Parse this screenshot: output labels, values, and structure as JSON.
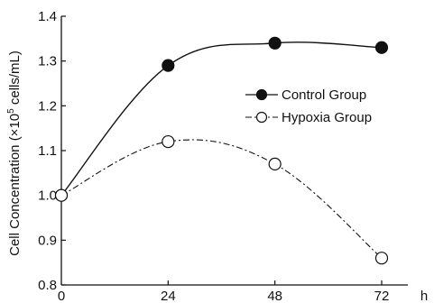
{
  "chart_data": {
    "type": "line",
    "x": [
      0,
      24,
      48,
      72
    ],
    "x_ticks": [
      "0",
      "24",
      "48",
      "72"
    ],
    "x_unit": "h",
    "y_ticks": [
      "0.8",
      "0.9",
      "1.0",
      "1.1",
      "1.2",
      "1.3",
      "1.4"
    ],
    "ylim": [
      0.8,
      1.4
    ],
    "xlim": [
      0,
      72
    ],
    "ylabel_main": "Cell Concentration (×10",
    "ylabel_sup": "5",
    "ylabel_end": " cells/mL)",
    "grid": false,
    "legend_position": "right",
    "series": [
      {
        "name": "Control Group",
        "values": [
          1.0,
          1.29,
          1.34,
          1.33
        ],
        "marker": "filled-circle",
        "line_style": "solid",
        "color": "#111111"
      },
      {
        "name": "Hypoxia Group",
        "values": [
          1.0,
          1.12,
          1.07,
          0.86
        ],
        "marker": "open-circle",
        "line_style": "dash-dot",
        "color": "#111111"
      }
    ]
  }
}
